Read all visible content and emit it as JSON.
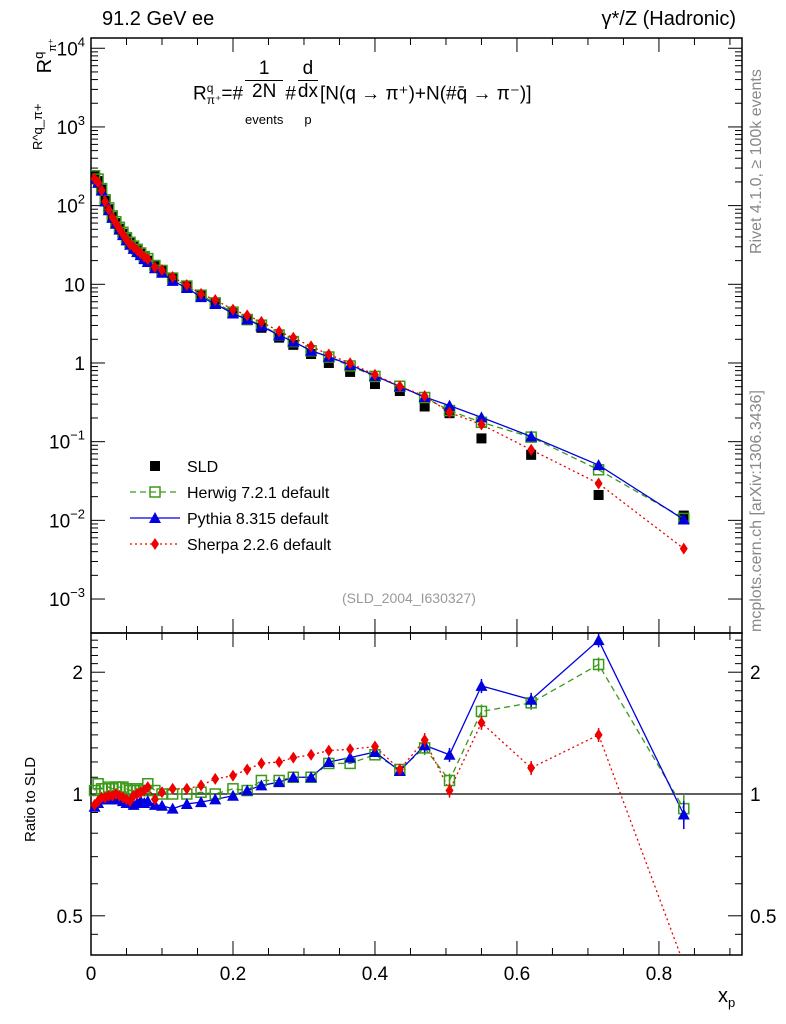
{
  "header": {
    "left": "91.2 GeV ee",
    "right": "γ*/Z (Hadronic)"
  },
  "side": {
    "rivet": "Rivet 4.1.0, ≥ 100k events",
    "mcplots": "mcplots.cern.ch [arXiv:1306.3436]"
  },
  "formula": {
    "lhs": "R",
    "lhs_sup": "q",
    "lhs_sub": "π⁺",
    "eq": "=#",
    "num1": "1",
    "den1": "2N",
    "den1_sub": "events",
    "hash": "#",
    "num2": "d",
    "den2": "dx",
    "den2_sub": "p",
    "rhs": "[N(q → π⁺)+N(#q̄ → π⁻)]"
  },
  "analysis_id": "(SLD_2004_I630327)",
  "chart_data": [
    {
      "type": "scatter",
      "panel": "main",
      "yscale": "log",
      "ylim": [
        0.00037,
        13500
      ],
      "xlim": [
        0,
        0.917
      ],
      "ylabel": "R^q_π+",
      "ylabel_parts": {
        "main": "R",
        "sup": "q",
        "sub": "π⁺"
      },
      "yticks": [
        {
          "v": 10000,
          "b": "10",
          "e": "4"
        },
        {
          "v": 1000,
          "b": "10",
          "e": "3"
        },
        {
          "v": 100,
          "b": "10",
          "e": "2"
        },
        {
          "v": 10,
          "b": "10",
          "e": ""
        },
        {
          "v": 1,
          "b": "1",
          "e": ""
        },
        {
          "v": 0.1,
          "b": "10",
          "e": "−1"
        },
        {
          "v": 0.01,
          "b": "10",
          "e": "−2"
        },
        {
          "v": 0.001,
          "b": "10",
          "e": "−3"
        }
      ],
      "x": [
        0.005,
        0.01,
        0.015,
        0.02,
        0.025,
        0.03,
        0.035,
        0.04,
        0.045,
        0.05,
        0.055,
        0.06,
        0.065,
        0.07,
        0.075,
        0.08,
        0.09,
        0.1,
        0.115,
        0.135,
        0.155,
        0.175,
        0.2,
        0.22,
        0.24,
        0.265,
        0.285,
        0.31,
        0.335,
        0.365,
        0.4,
        0.435,
        0.47,
        0.505,
        0.55,
        0.62,
        0.715,
        0.835
      ],
      "data": {
        "name": "SLD",
        "values": [
          235,
          205,
          160,
          115,
          90,
          72,
          60,
          51,
          44,
          38,
          33.5,
          30,
          27,
          24.5,
          22,
          20,
          17,
          15,
          12,
          9.5,
          7.2,
          5.8,
          4.3,
          3.5,
          2.8,
          2.1,
          1.7,
          1.3,
          1.0,
          0.77,
          0.54,
          0.44,
          0.28,
          0.23,
          0.11,
          0.068,
          0.021,
          0.0115
        ]
      },
      "legend": {
        "placement": "bottom-left",
        "entries": [
          "SLD",
          "Herwig 7.2.1 default",
          "Pythia 8.315 default",
          "Sherpa 2.2.6 default"
        ]
      }
    },
    {
      "type": "line",
      "panel": "ratio",
      "yscale": "log",
      "ylim": [
        0.4,
        2.5
      ],
      "ylabel": "Ratio to SLD",
      "xlabel": "x_p",
      "xlabel_parts": {
        "main": "x",
        "sub": "p"
      },
      "yticks": [
        {
          "v": 2,
          "label": "2"
        },
        {
          "v": 1,
          "label": "1"
        },
        {
          "v": 0.5,
          "label": "0.5"
        }
      ],
      "xticks": [
        {
          "v": 0,
          "label": "0"
        },
        {
          "v": 0.2,
          "label": "0.2"
        },
        {
          "v": 0.4,
          "label": "0.4"
        },
        {
          "v": 0.6,
          "label": "0.6"
        },
        {
          "v": 0.8,
          "label": "0.8"
        }
      ],
      "series": [
        {
          "name": "Herwig 7.2.1 default",
          "color": "#3a9a18",
          "marker": "open-square",
          "dash": "6,4",
          "ratios": [
            1.02,
            1.06,
            1.03,
            1.03,
            1.04,
            1.03,
            1.04,
            1.04,
            1.04,
            1.03,
            1.02,
            1.02,
            1.03,
            1.02,
            1.02,
            1.06,
            1.02,
            1.0,
            1.0,
            1.0,
            1.01,
            1.0,
            1.03,
            1.02,
            1.08,
            1.08,
            1.1,
            1.1,
            1.19,
            1.19,
            1.25,
            1.15,
            1.3,
            1.08,
            1.6,
            1.68,
            2.09,
            0.92
          ]
        },
        {
          "name": "Pythia 8.315 default",
          "color": "#0000e0",
          "marker": "filled-triangle",
          "dash": "",
          "ratios": [
            0.93,
            0.95,
            0.97,
            0.98,
            0.97,
            0.97,
            0.98,
            0.97,
            0.96,
            0.95,
            0.95,
            0.94,
            0.95,
            0.96,
            0.95,
            0.96,
            0.94,
            0.935,
            0.92,
            0.945,
            0.955,
            0.97,
            0.99,
            1.02,
            1.05,
            1.07,
            1.1,
            1.1,
            1.2,
            1.23,
            1.27,
            1.14,
            1.32,
            1.25,
            1.85,
            1.71,
            2.4,
            0.89
          ]
        },
        {
          "name": "Sherpa 2.2.6 default",
          "color": "#ee0000",
          "marker": "filled-diamond",
          "dash": "2,3",
          "ratios": [
            0.94,
            0.96,
            0.98,
            0.98,
            0.99,
            0.99,
            1.0,
            0.99,
            0.98,
            0.97,
            0.96,
            0.99,
            1.0,
            1.01,
            1.02,
            1.04,
            0.97,
            1.01,
            1.03,
            1.03,
            1.05,
            1.09,
            1.11,
            1.15,
            1.19,
            1.2,
            1.23,
            1.25,
            1.28,
            1.29,
            1.31,
            1.15,
            1.36,
            1.02,
            1.5,
            1.16,
            1.4,
            0.38
          ]
        }
      ]
    }
  ]
}
